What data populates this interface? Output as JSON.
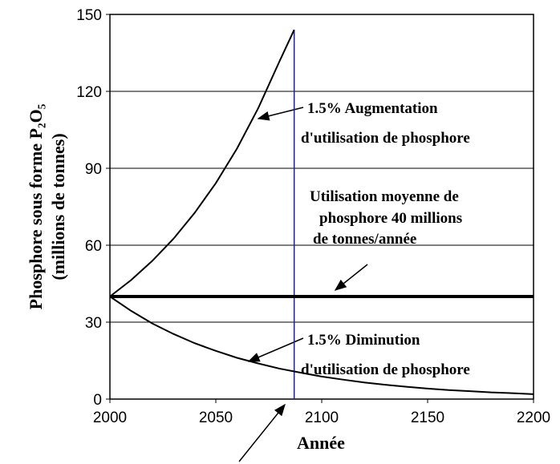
{
  "chart_data": {
    "type": "line",
    "xlabel": "Année",
    "ylabel": [
      "Phosphore sous forme P₂O₅",
      "(millions de tonnes)"
    ],
    "xlim": [
      2000,
      2200
    ],
    "xticks": [
      2000,
      2050,
      2100,
      2150,
      2200
    ],
    "ylim": [
      0,
      150
    ],
    "yticks": [
      0,
      30,
      60,
      90,
      120,
      150
    ],
    "grid": true,
    "series": [
      {
        "color": "#000000",
        "x": [
          2000,
          2010,
          2020,
          2030,
          2040,
          2050,
          2060,
          2070,
          2080,
          2087
        ],
        "values": [
          40,
          46.4,
          53.9,
          62.5,
          72.6,
          84.2,
          97.7,
          113.4,
          131.6,
          144
        ]
      },
      {
        "color": "#000000",
        "x": [
          2000,
          2200
        ],
        "values": [
          40,
          40
        ]
      },
      {
        "color": "#000000",
        "x": [
          2000,
          2010,
          2020,
          2030,
          2040,
          2050,
          2060,
          2070,
          2080,
          2090,
          2100,
          2110,
          2120,
          2130,
          2140,
          2150,
          2160,
          2170,
          2180,
          2190,
          2200
        ],
        "values": [
          40,
          34.4,
          29.5,
          25.4,
          21.8,
          18.8,
          16.1,
          13.9,
          11.9,
          10.3,
          8.8,
          7.6,
          6.5,
          5.6,
          4.8,
          4.1,
          3.5,
          3.1,
          2.6,
          2.3,
          1.9
        ]
      }
    ],
    "vline": {
      "x": 2087,
      "y": [
        0,
        144
      ],
      "color": "#1f1fa0"
    },
    "annotations": [
      "1.5% Augmentation",
      "d'utilisation de phosphore",
      "Utilisation moyenne de",
      "phosphore 40 millions",
      "de tonnes/année",
      "1.5% Diminution",
      "d'utilisation de phosphore"
    ]
  }
}
